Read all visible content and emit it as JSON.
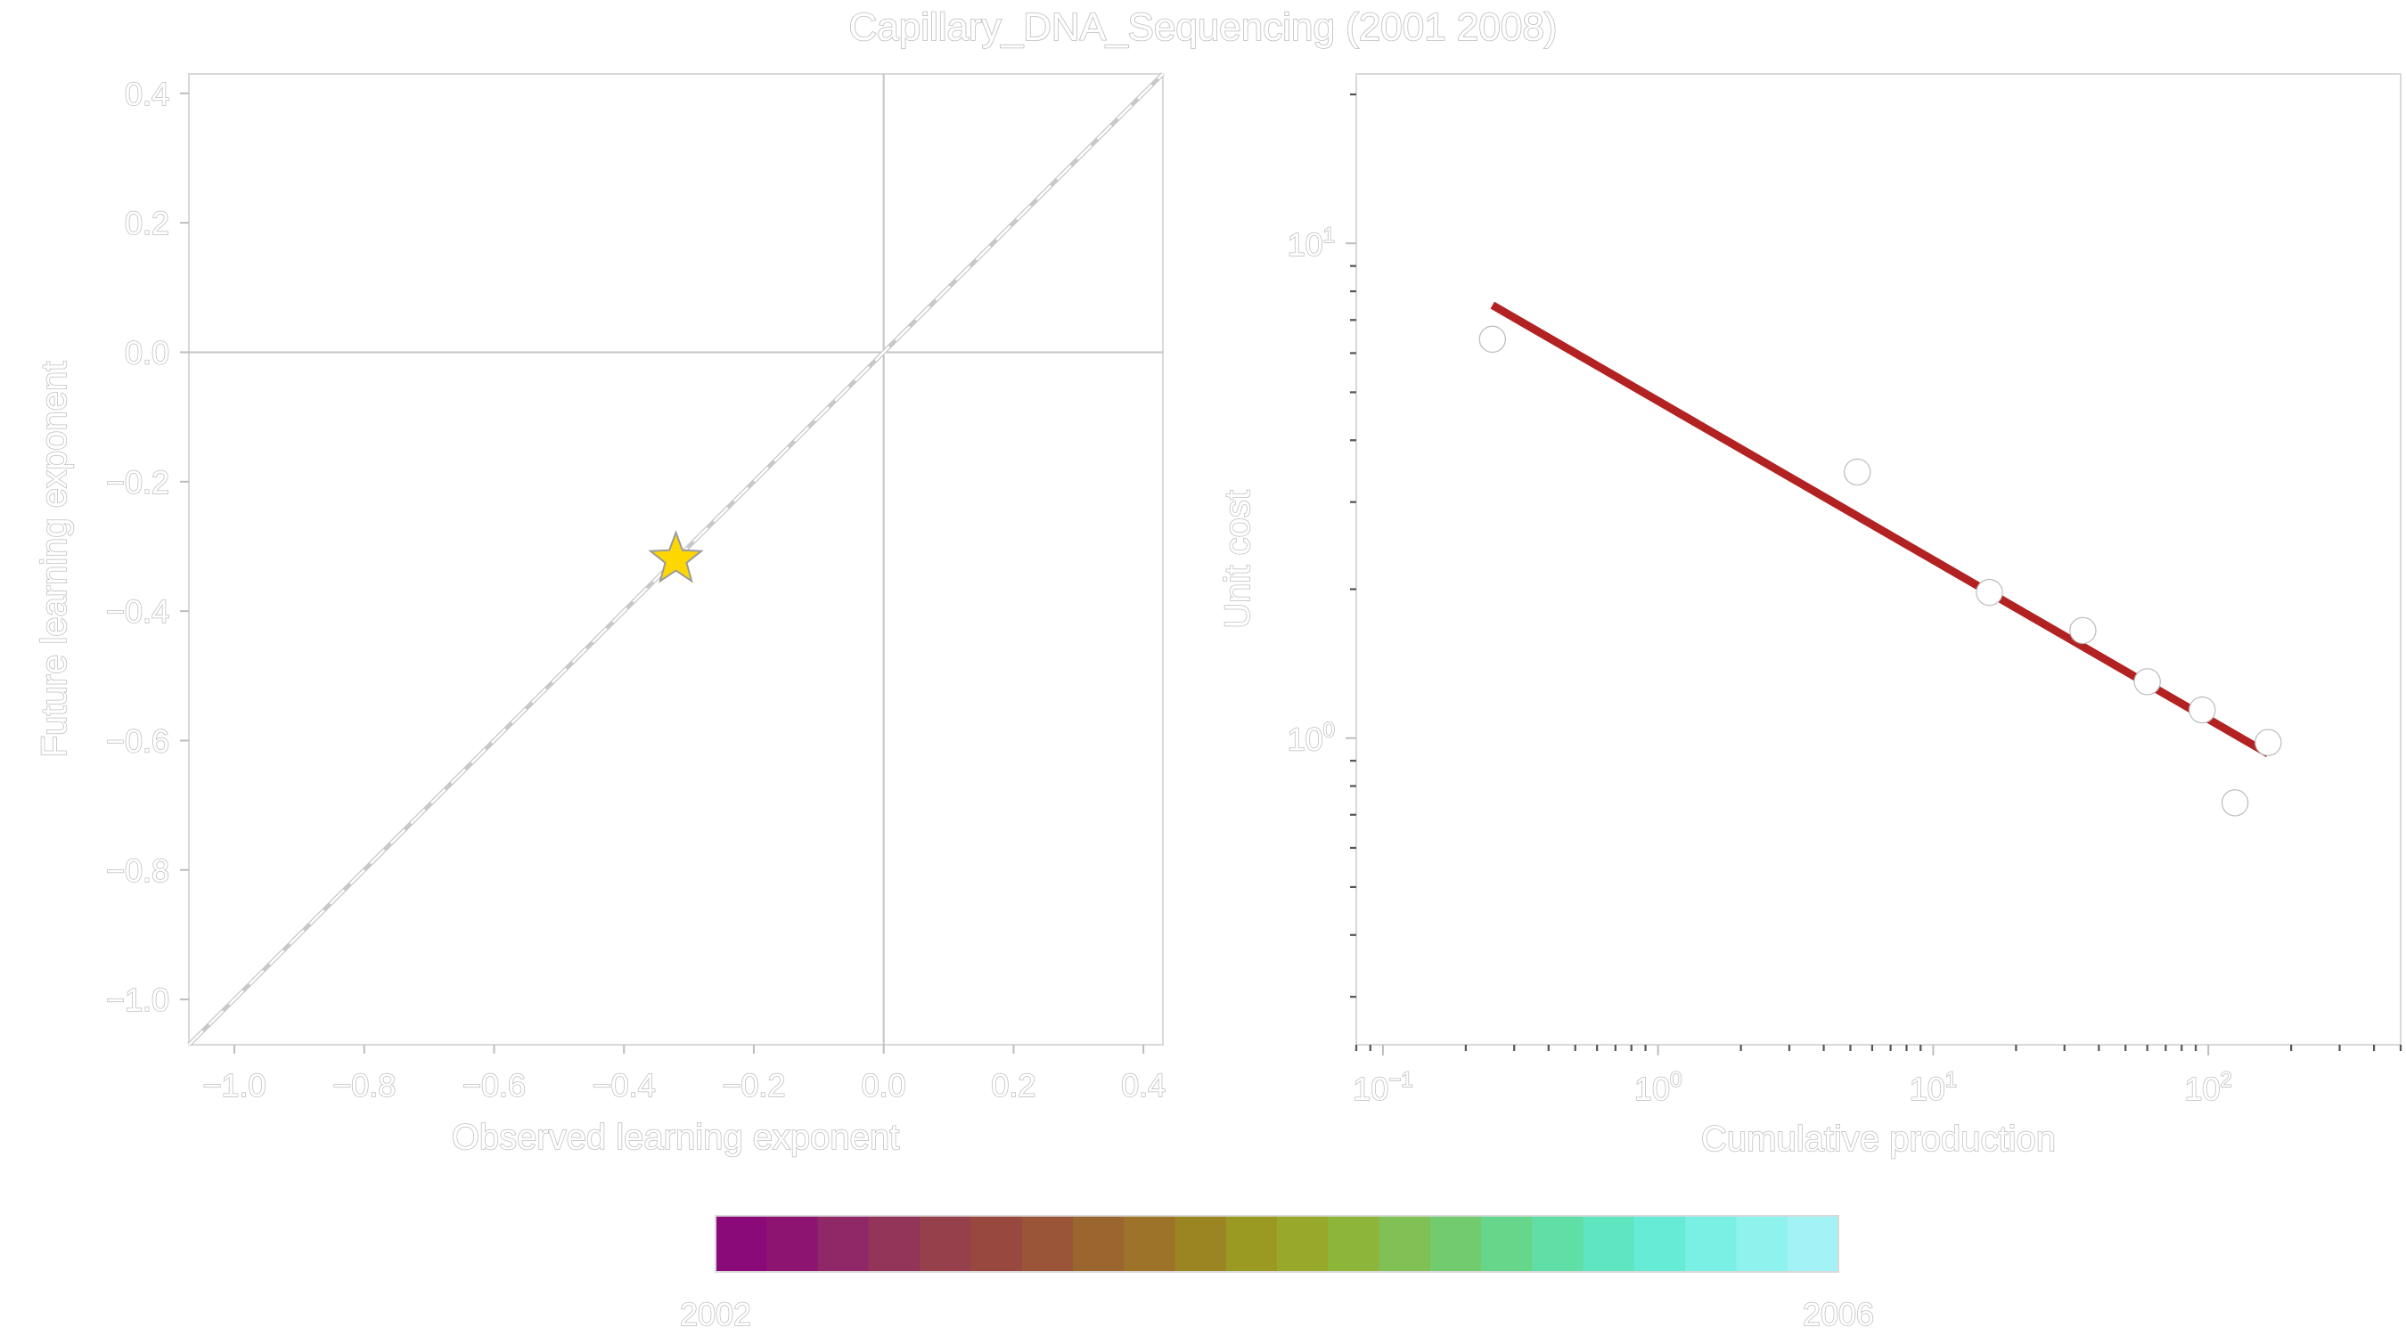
{
  "figure": {
    "title": "Capillary_DNA_Sequencing (2001 2008)"
  },
  "chart_data": [
    {
      "type": "scatter",
      "panel": "left",
      "xlabel": "Observed learning exponent",
      "ylabel": "Future learning exponent",
      "xlim": [
        -1.07,
        0.43
      ],
      "ylim": [
        -1.07,
        0.43
      ],
      "xticks": [
        -1.0,
        -0.8,
        -0.6,
        -0.4,
        -0.2,
        0.0,
        0.2,
        0.4
      ],
      "xtick_labels": [
        "−1.0",
        "−0.8",
        "−0.6",
        "−0.4",
        "−0.2",
        "0.0",
        "0.2",
        "0.4"
      ],
      "yticks": [
        0.4,
        0.2,
        0.0,
        -0.2,
        -0.4,
        -0.6,
        -0.8,
        -1.0
      ],
      "ytick_labels": [
        "0.4",
        "0.2",
        "0.0",
        "−0.2",
        "−0.4",
        "−0.6",
        "−0.8",
        "−1.0"
      ],
      "reference_lines": {
        "diagonal": "y = x (dashed)",
        "horizontal": 0.0,
        "vertical": 0.0
      },
      "points": [
        {
          "x": -0.32,
          "y": -0.32,
          "marker": "star",
          "color": "#ffd700"
        }
      ],
      "grid": false
    },
    {
      "type": "scatter",
      "panel": "right",
      "xlabel": "Cumulative production",
      "ylabel": "Unit cost",
      "xscale": "log",
      "yscale": "log",
      "xlim": [
        0.08,
        500
      ],
      "ylim": [
        0.24,
        22
      ],
      "xticks": [
        0.1,
        1,
        10,
        100
      ],
      "xtick_labels": [
        {
          "base": "10",
          "exp": "−1"
        },
        {
          "base": "10",
          "exp": "0"
        },
        {
          "base": "10",
          "exp": "1"
        },
        {
          "base": "10",
          "exp": "2"
        }
      ],
      "yticks": [
        1,
        10
      ],
      "ytick_labels": [
        {
          "base": "10",
          "exp": "0"
        },
        {
          "base": "10",
          "exp": "1"
        }
      ],
      "points": [
        {
          "x": 0.25,
          "y": 6.4
        },
        {
          "x": 5.3,
          "y": 3.45
        },
        {
          "x": 16,
          "y": 1.97
        },
        {
          "x": 35,
          "y": 1.65
        },
        {
          "x": 60,
          "y": 1.3
        },
        {
          "x": 95,
          "y": 1.14
        },
        {
          "x": 125,
          "y": 0.74
        },
        {
          "x": 165,
          "y": 0.98
        }
      ],
      "fit_line": {
        "x": [
          0.25,
          165
        ],
        "y": [
          7.5,
          0.93
        ],
        "color": "#b22222"
      },
      "grid": false
    }
  ],
  "colorbar": {
    "min_label": "2002",
    "max_label": "2006",
    "colors": [
      "#8b0a7a",
      "#8e1472",
      "#902868",
      "#933459",
      "#95404a",
      "#98483f",
      "#9a5538",
      "#9b6530",
      "#9c7328",
      "#9b8523",
      "#9a9a22",
      "#97a82b",
      "#8db53a",
      "#80c055",
      "#72cc6e",
      "#66d68a",
      "#5fdfa6",
      "#5fe6c0",
      "#66ecd6",
      "#7af0e4",
      "#8ff3ed",
      "#a3f3f6"
    ]
  }
}
